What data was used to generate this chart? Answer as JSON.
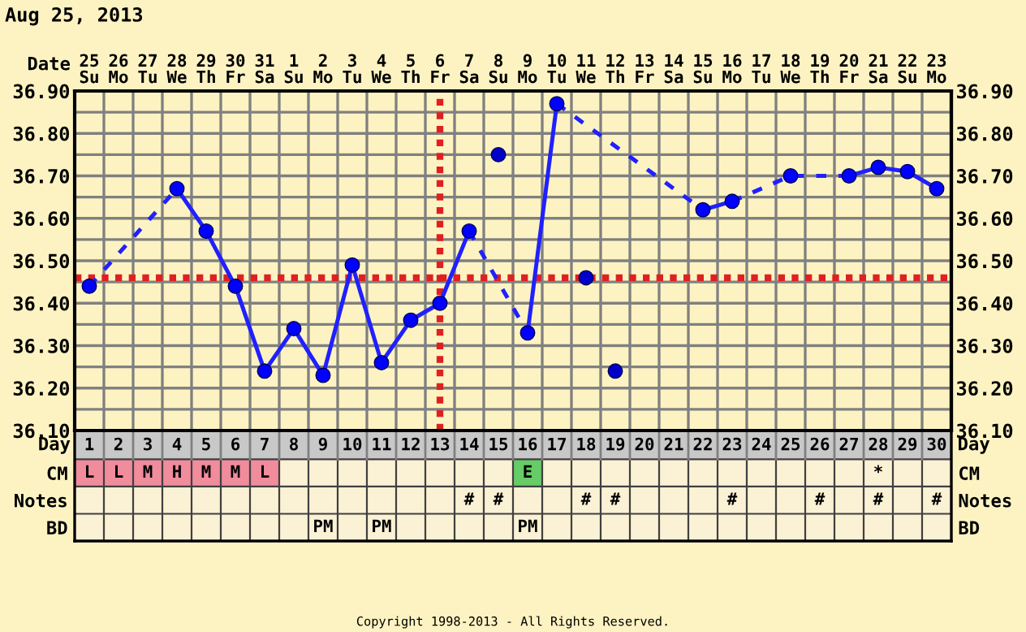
{
  "chart_data": [
    {
      "type": "line",
      "title": "Aug 25, 2013",
      "xlabel": "Day",
      "x2label": "Date",
      "annotations": [
        "Copyright 1998-2013 - All Rights Reserved."
      ],
      "xlim": [
        0.5,
        30.5
      ],
      "xticks": [
        1,
        2,
        3,
        4,
        5,
        6,
        7,
        8,
        9,
        10,
        11,
        12,
        13,
        14,
        15,
        16,
        17,
        18,
        19,
        20,
        21,
        22,
        23,
        24,
        25,
        26,
        27,
        28,
        29,
        30
      ],
      "x2lim": [
        "2013-08-24T12:00",
        "2013-09-23T12:00"
      ],
      "x2ticks": [
        {
          "value": "2013-08-25",
          "label": "25\nSu"
        },
        {
          "value": "2013-08-26",
          "label": "26\nMo"
        },
        {
          "value": "2013-08-27",
          "label": "27\nTu"
        },
        {
          "value": "2013-08-28",
          "label": "28\nWe"
        },
        {
          "value": "2013-08-29",
          "label": "29\nTh"
        },
        {
          "value": "2013-08-30",
          "label": "30\nFr"
        },
        {
          "value": "2013-08-31",
          "label": "31\nSa"
        },
        {
          "value": "2013-09-01",
          "label": "1\nSu"
        },
        {
          "value": "2013-09-02",
          "label": "2\nMo"
        },
        {
          "value": "2013-09-03",
          "label": "3\nTu"
        },
        {
          "value": "2013-09-04",
          "label": "4\nWe"
        },
        {
          "value": "2013-09-05",
          "label": "5\nTh"
        },
        {
          "value": "2013-09-06",
          "label": "6\nFr"
        },
        {
          "value": "2013-09-07",
          "label": "7\nSa"
        },
        {
          "value": "2013-09-08",
          "label": "8\nSu"
        },
        {
          "value": "2013-09-09",
          "label": "9\nMo"
        },
        {
          "value": "2013-09-10",
          "label": "10\nTu"
        },
        {
          "value": "2013-09-11",
          "label": "11\nWe"
        },
        {
          "value": "2013-09-12",
          "label": "12\nTh"
        },
        {
          "value": "2013-09-13",
          "label": "13\nFr"
        },
        {
          "value": "2013-09-14",
          "label": "14\nSa"
        },
        {
          "value": "2013-09-15",
          "label": "15\nSu"
        },
        {
          "value": "2013-09-16",
          "label": "16\nMo"
        },
        {
          "value": "2013-09-17",
          "label": "17\nTu"
        },
        {
          "value": "2013-09-18",
          "label": "18\nWe"
        },
        {
          "value": "2013-09-19",
          "label": "19\nTh"
        },
        {
          "value": "2013-09-20",
          "label": "20\nFr"
        },
        {
          "value": "2013-09-21",
          "label": "21\nSa"
        },
        {
          "value": "2013-09-22",
          "label": "22\nSu"
        },
        {
          "value": "2013-09-23",
          "label": "23\nMo"
        }
      ],
      "ylim": [
        36.1,
        36.9
      ],
      "yticks": [
        {
          "value": 36.1,
          "label": "36.10"
        },
        {
          "value": 36.15,
          "label": null
        },
        {
          "value": 36.2,
          "label": "36.20"
        },
        {
          "value": 36.25,
          "label": null
        },
        {
          "value": 36.3,
          "label": "36.30"
        },
        {
          "value": 36.35,
          "label": null
        },
        {
          "value": 36.4,
          "label": "36.40"
        },
        {
          "value": 36.45,
          "label": null
        },
        {
          "value": 36.5,
          "label": "36.50"
        },
        {
          "value": 36.55,
          "label": null
        },
        {
          "value": 36.6,
          "label": "36.60"
        },
        {
          "value": 36.65,
          "label": null
        },
        {
          "value": 36.7,
          "label": "36.70"
        },
        {
          "value": 36.75,
          "label": null
        },
        {
          "value": 36.8,
          "label": "36.80"
        },
        {
          "value": 36.85,
          "label": null
        },
        {
          "value": 36.9,
          "label": "36.90"
        }
      ],
      "y2lim": [
        36.1,
        36.9
      ],
      "y2ticks": [
        {
          "value": 36.1,
          "label": "36.10"
        },
        {
          "value": 36.15,
          "label": null
        },
        {
          "value": 36.2,
          "label": "36.20"
        },
        {
          "value": 36.25,
          "label": null
        },
        {
          "value": 36.3,
          "label": "36.30"
        },
        {
          "value": 36.35,
          "label": null
        },
        {
          "value": 36.4,
          "label": "36.40"
        },
        {
          "value": 36.45,
          "label": null
        },
        {
          "value": 36.5,
          "label": "36.50"
        },
        {
          "value": 36.55,
          "label": null
        },
        {
          "value": 36.6,
          "label": "36.60"
        },
        {
          "value": 36.65,
          "label": null
        },
        {
          "value": 36.7,
          "label": "36.70"
        },
        {
          "value": 36.75,
          "label": null
        },
        {
          "value": 36.8,
          "label": "36.80"
        },
        {
          "value": 36.85,
          "label": null
        },
        {
          "value": 36.9,
          "label": "36.90"
        }
      ],
      "grid": "y",
      "ref_lines": [
        {
          "axis": "y",
          "value": 36.46,
          "color": "#e02020",
          "line_style": "dotted"
        },
        {
          "axis": "x",
          "value": 13,
          "color": "#e02020",
          "line_style": "dotted"
        }
      ],
      "series": [
        {
          "type": "line",
          "color": "#2020ff",
          "line_style": "solid",
          "x": [
            4,
            5,
            6,
            7,
            8,
            9,
            10,
            11,
            12,
            13,
            14
          ],
          "values": [
            36.67,
            36.57,
            36.44,
            36.24,
            36.34,
            36.23,
            36.49,
            36.26,
            36.36,
            36.4,
            36.57
          ]
        },
        {
          "type": "line",
          "color": "#2020ff",
          "line_style": "solid",
          "x": [
            16,
            17
          ],
          "values": [
            36.33,
            36.87
          ]
        },
        {
          "type": "line",
          "color": "#2020ff",
          "line_style": "solid",
          "x": [
            22,
            23
          ],
          "values": [
            36.62,
            36.64
          ]
        },
        {
          "type": "line",
          "color": "#2020ff",
          "line_style": "solid",
          "x": [
            27,
            28,
            29,
            30
          ],
          "values": [
            36.7,
            36.72,
            36.71,
            36.67
          ]
        },
        {
          "type": "line",
          "color": "#2020ff",
          "line_style": "dashed",
          "x": [
            1,
            4
          ],
          "values": [
            36.44,
            36.67
          ]
        },
        {
          "type": "line",
          "color": "#2020ff",
          "line_style": "dashed",
          "x": [
            14,
            16
          ],
          "values": [
            36.57,
            36.33
          ]
        },
        {
          "type": "line",
          "color": "#2020ff",
          "line_style": "dashed",
          "x": [
            17,
            22
          ],
          "values": [
            36.87,
            36.62
          ]
        },
        {
          "type": "line",
          "color": "#2020ff",
          "line_style": "dashed",
          "x": [
            23,
            25,
            27
          ],
          "values": [
            36.64,
            36.7,
            36.7
          ]
        },
        {
          "type": "scatter",
          "color": "#0000ff",
          "marker": "circle",
          "x": [
            1,
            4,
            5,
            6,
            7,
            8,
            9,
            10,
            11,
            12,
            13,
            14,
            16,
            17,
            22,
            23,
            25,
            27,
            28,
            29,
            30
          ],
          "values": [
            36.44,
            36.67,
            36.57,
            36.44,
            36.24,
            36.34,
            36.23,
            36.49,
            36.26,
            36.36,
            36.4,
            36.57,
            36.33,
            36.87,
            36.62,
            36.64,
            36.7,
            36.7,
            36.72,
            36.71,
            36.67
          ]
        },
        {
          "type": "scatter",
          "color": "#0000c8",
          "marker": "circle",
          "x": [
            15,
            18,
            19
          ],
          "values": [
            36.75,
            36.46,
            36.24
          ]
        }
      ]
    },
    {
      "type": "other",
      "categories": [
        null,
        null,
        null,
        null,
        null,
        null,
        null,
        null,
        null,
        null,
        null,
        null,
        null,
        null,
        null,
        null,
        null,
        null,
        null,
        null,
        null,
        null,
        null,
        null,
        null,
        null,
        null,
        null,
        null,
        null
      ],
      "y_categories": [
        "CM",
        "Notes",
        "BD"
      ],
      "y2_categories": [
        "CM",
        "Notes",
        "BD"
      ],
      "cell_labels": [
        [
          "L",
          "L",
          "M",
          "H",
          "M",
          "M",
          "L",
          null,
          null,
          null,
          null,
          null,
          null,
          null,
          null,
          "E",
          null,
          null,
          null,
          null,
          null,
          null,
          null,
          null,
          null,
          null,
          null,
          "*",
          null,
          null
        ],
        [
          null,
          null,
          null,
          null,
          null,
          null,
          null,
          null,
          null,
          null,
          null,
          null,
          null,
          "#",
          "#",
          null,
          null,
          "#",
          "#",
          null,
          null,
          null,
          "#",
          null,
          null,
          "#",
          null,
          "#",
          null,
          "#"
        ],
        [
          null,
          null,
          null,
          null,
          null,
          null,
          null,
          null,
          "PM",
          null,
          "PM",
          null,
          null,
          null,
          null,
          "PM",
          null,
          null,
          null,
          null,
          null,
          null,
          null,
          null,
          null,
          null,
          null,
          null,
          null,
          null
        ]
      ],
      "colors": [
        [
          "#f08c9c",
          "#f08c9c",
          "#f08c9c",
          "#f08c9c",
          "#f08c9c",
          "#f08c9c",
          "#f08c9c",
          null,
          null,
          null,
          null,
          null,
          null,
          null,
          null,
          "#66cc66",
          null,
          null,
          null,
          null,
          null,
          null,
          null,
          null,
          null,
          null,
          null,
          null,
          null,
          null
        ],
        [
          null,
          null,
          null,
          null,
          null,
          null,
          null,
          null,
          null,
          null,
          null,
          null,
          null,
          null,
          null,
          null,
          null,
          null,
          null,
          null,
          null,
          null,
          null,
          null,
          null,
          null,
          null,
          null,
          null,
          null
        ],
        [
          null,
          null,
          null,
          null,
          null,
          null,
          null,
          null,
          null,
          null,
          null,
          null,
          null,
          null,
          null,
          null,
          null,
          null,
          null,
          null,
          null,
          null,
          null,
          null,
          null,
          null,
          null,
          null,
          null,
          null
        ]
      ]
    }
  ]
}
